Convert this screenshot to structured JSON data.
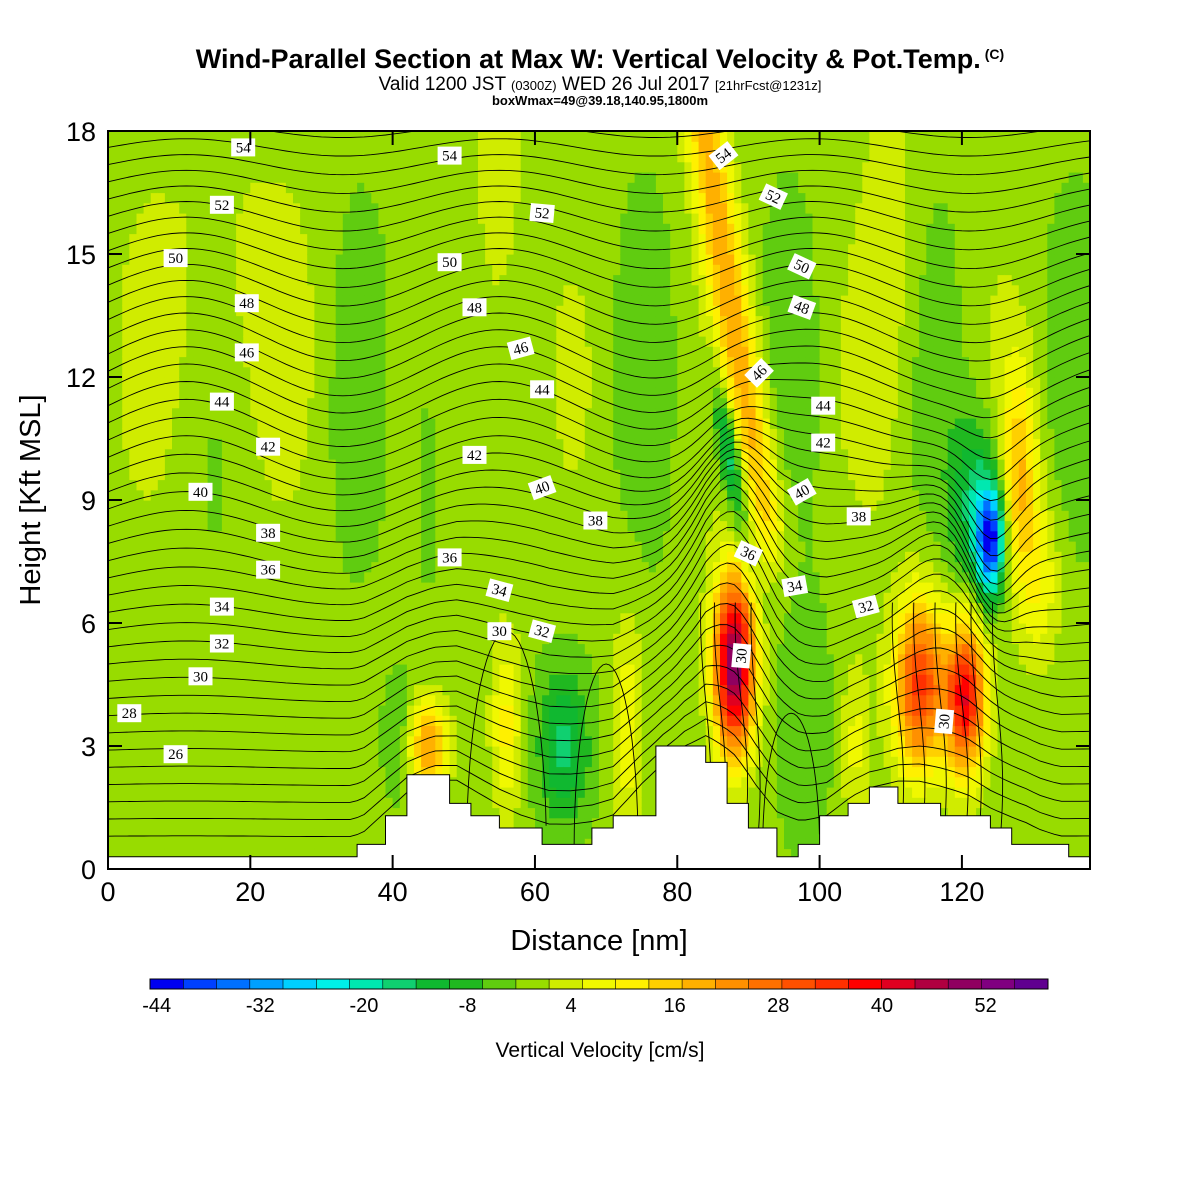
{
  "title": "Wind-Parallel Section at Max W: Vertical Velocity & Pot.Temp.",
  "copyright_mark": "(C)",
  "subtitle": {
    "valid_prefix": "Valid 1200 JST",
    "utc": "(0300Z)",
    "date": "WED 26 Jul 2017",
    "forecast": "[21hrFcst@1231z]"
  },
  "box_info": "boxWmax=49@39.18,140.95,1800m",
  "chart_data": {
    "type": "heatmap",
    "xlabel": "Distance [nm]",
    "ylabel": "Height [Kft MSL]",
    "xlim": [
      0,
      138
    ],
    "ylim": [
      0,
      18
    ],
    "x_ticks": [
      "0",
      "20",
      "40",
      "60",
      "80",
      "100",
      "120"
    ],
    "y_ticks": [
      "0",
      "3",
      "6",
      "9",
      "12",
      "15",
      "18"
    ],
    "colorbar": {
      "title": "Vertical Velocity [cm/s]",
      "levels": [
        -44,
        -40,
        -36,
        -32,
        -28,
        -24,
        -20,
        -16,
        -12,
        -8,
        -4,
        0,
        4,
        8,
        12,
        16,
        20,
        24,
        28,
        32,
        36,
        40,
        44,
        48,
        52,
        56,
        60
      ],
      "tick_labels": [
        "-44",
        "-32",
        "-20",
        "-8",
        "4",
        "16",
        "28",
        "40",
        "52"
      ],
      "colors": [
        "#0000f0",
        "#0040ff",
        "#0070ff",
        "#00a0ff",
        "#00d0ff",
        "#00f0e8",
        "#00e8b0",
        "#10d070",
        "#10b830",
        "#20b820",
        "#60cc10",
        "#98dc00",
        "#d0ec00",
        "#f0f800",
        "#fff000",
        "#ffd000",
        "#ffb000",
        "#ff9000",
        "#ff7000",
        "#ff5000",
        "#ff3000",
        "#ff0000",
        "#e00020",
        "#b00040",
        "#900060",
        "#800080",
        "#600090"
      ]
    },
    "velocity_features": [
      {
        "kind": "updraft",
        "x": 88,
        "z": 5.0,
        "peak": 56
      },
      {
        "kind": "updraft",
        "x": 120,
        "z": 4.5,
        "peak": 42
      },
      {
        "kind": "updraft",
        "x": 45,
        "z": 3.0,
        "peak": 24
      },
      {
        "kind": "downdraft",
        "x": 124,
        "z": 8.0,
        "peak": -40
      },
      {
        "kind": "downdraft",
        "x": 87,
        "z": 10.0,
        "peak": -20
      },
      {
        "kind": "downdraft",
        "x": 64,
        "z": 3.0,
        "peak": -14
      }
    ],
    "terrain": {
      "x": [
        0,
        35,
        35,
        39,
        39,
        42,
        42,
        48,
        48,
        51,
        51,
        55,
        55,
        61,
        61,
        68,
        68,
        71,
        71,
        77,
        77,
        84,
        84,
        87,
        87,
        90,
        90,
        94,
        94,
        97,
        97,
        100,
        100,
        104,
        104,
        107,
        107,
        111,
        111,
        117,
        117,
        124,
        124,
        127,
        127,
        130,
        130,
        135,
        135,
        138,
        138
      ],
      "z": [
        0.3,
        0.3,
        0.6,
        0.6,
        1.3,
        1.3,
        2.3,
        2.3,
        1.6,
        1.6,
        1.3,
        1.3,
        1.0,
        1.0,
        0.6,
        0.6,
        1.0,
        1.0,
        1.3,
        1.3,
        3.0,
        3.0,
        2.6,
        2.6,
        1.6,
        1.6,
        1.0,
        1.0,
        0.3,
        0.3,
        0.6,
        0.6,
        1.3,
        1.3,
        1.6,
        1.6,
        2.0,
        2.0,
        1.6,
        1.6,
        1.3,
        1.3,
        1.0,
        1.0,
        0.6,
        0.6,
        0.6,
        0.6,
        0.3,
        0.3,
        0.3
      ]
    },
    "theta_labels": [
      {
        "text": "54",
        "x": 19,
        "z": 17.6,
        "angle": 0
      },
      {
        "text": "54",
        "x": 48,
        "z": 17.4,
        "angle": 0
      },
      {
        "text": "54",
        "x": 86.5,
        "z": 17.4,
        "angle": -38
      },
      {
        "text": "52",
        "x": 16,
        "z": 16.2,
        "angle": 0
      },
      {
        "text": "52",
        "x": 61,
        "z": 16.0,
        "angle": 5
      },
      {
        "text": "52",
        "x": 93.5,
        "z": 16.4,
        "angle": 25
      },
      {
        "text": "50",
        "x": 9.5,
        "z": 14.9,
        "angle": 0
      },
      {
        "text": "50",
        "x": 48,
        "z": 14.8,
        "angle": 0
      },
      {
        "text": "50",
        "x": 97.5,
        "z": 14.7,
        "angle": 25
      },
      {
        "text": "48",
        "x": 19.5,
        "z": 13.8,
        "angle": 0
      },
      {
        "text": "48",
        "x": 51.5,
        "z": 13.7,
        "angle": 0
      },
      {
        "text": "48",
        "x": 97.5,
        "z": 13.7,
        "angle": 20
      },
      {
        "text": "46",
        "x": 19.5,
        "z": 12.6,
        "angle": 0
      },
      {
        "text": "46",
        "x": 58,
        "z": 12.7,
        "angle": -15
      },
      {
        "text": "46",
        "x": 91.5,
        "z": 12.1,
        "angle": -45
      },
      {
        "text": "44",
        "x": 16,
        "z": 11.4,
        "angle": 0
      },
      {
        "text": "44",
        "x": 61,
        "z": 11.7,
        "angle": 0
      },
      {
        "text": "44",
        "x": 100.5,
        "z": 11.3,
        "angle": 0
      },
      {
        "text": "42",
        "x": 22.5,
        "z": 10.3,
        "angle": 0
      },
      {
        "text": "42",
        "x": 51.5,
        "z": 10.1,
        "angle": 0
      },
      {
        "text": "42",
        "x": 100.5,
        "z": 10.4,
        "angle": 0
      },
      {
        "text": "40",
        "x": 13,
        "z": 9.2,
        "angle": 0
      },
      {
        "text": "40",
        "x": 61,
        "z": 9.3,
        "angle": -20
      },
      {
        "text": "40",
        "x": 97.5,
        "z": 9.2,
        "angle": -30
      },
      {
        "text": "38",
        "x": 22.5,
        "z": 8.2,
        "angle": 0
      },
      {
        "text": "38",
        "x": 68.5,
        "z": 8.5,
        "angle": 0
      },
      {
        "text": "38",
        "x": 105.5,
        "z": 8.6,
        "angle": 0
      },
      {
        "text": "36",
        "x": 22.5,
        "z": 7.3,
        "angle": 0
      },
      {
        "text": "36",
        "x": 48,
        "z": 7.6,
        "angle": 0
      },
      {
        "text": "36",
        "x": 90,
        "z": 7.7,
        "angle": 25
      },
      {
        "text": "34",
        "x": 16,
        "z": 6.4,
        "angle": 0
      },
      {
        "text": "34",
        "x": 55,
        "z": 6.8,
        "angle": 15
      },
      {
        "text": "34",
        "x": 96.5,
        "z": 6.9,
        "angle": -10
      },
      {
        "text": "32",
        "x": 16,
        "z": 5.5,
        "angle": 0
      },
      {
        "text": "32",
        "x": 61,
        "z": 5.8,
        "angle": 15
      },
      {
        "text": "32",
        "x": 106.5,
        "z": 6.4,
        "angle": -15
      },
      {
        "text": "30",
        "x": 13,
        "z": 4.7,
        "angle": 0
      },
      {
        "text": "30",
        "x": 55,
        "z": 5.8,
        "angle": 0
      },
      {
        "text": "30",
        "x": 89,
        "z": 5.2,
        "angle": -85
      },
      {
        "text": "30",
        "x": 117.5,
        "z": 3.6,
        "angle": -85
      },
      {
        "text": "28",
        "x": 3,
        "z": 3.8,
        "angle": 0
      },
      {
        "text": "26",
        "x": 9.5,
        "z": 2.8,
        "angle": 0
      }
    ]
  }
}
